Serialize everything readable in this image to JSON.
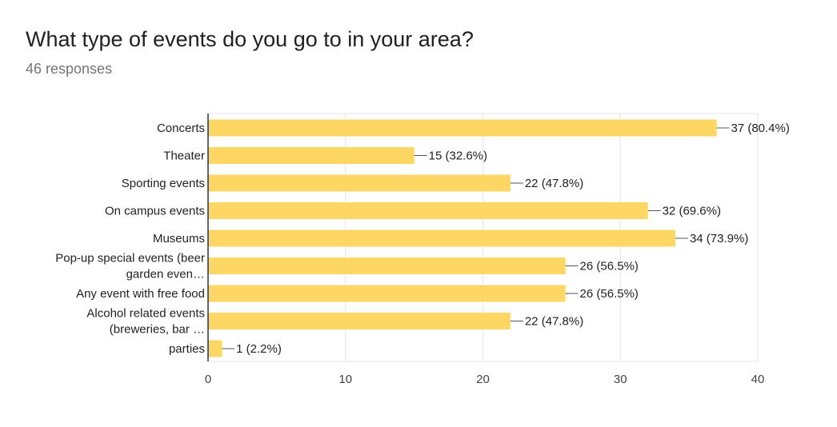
{
  "header": {
    "question": "What type of events do you go to in your area?",
    "responses": "46 responses"
  },
  "colors": {
    "bar": "#fdd663",
    "grid": "#e6e6e6",
    "axis": "#333333",
    "text": "#222222"
  },
  "chart_data": {
    "type": "bar",
    "orientation": "horizontal",
    "categories": [
      "Concerts",
      "Theater",
      "Sporting events",
      "On campus events",
      "Museums",
      "Pop-up special events (beer garden even…",
      "Any event with free food",
      "Alcohol related events (breweries, bar …",
      "parties"
    ],
    "category_lines": [
      [
        "Concerts"
      ],
      [
        "Theater"
      ],
      [
        "Sporting events"
      ],
      [
        "On campus events"
      ],
      [
        "Museums"
      ],
      [
        "Pop-up special events (beer",
        "garden even…"
      ],
      [
        "Any event with free food"
      ],
      [
        "Alcohol related events",
        "(breweries, bar …"
      ],
      [
        "parties"
      ]
    ],
    "values": [
      37,
      15,
      22,
      32,
      34,
      26,
      26,
      22,
      1
    ],
    "value_labels": [
      "37 (80.4%)",
      "15 (32.6%)",
      "22 (47.8%)",
      "32 (69.6%)",
      "34 (73.9%)",
      "26 (56.5%)",
      "26 (56.5%)",
      "22 (47.8%)",
      "1 (2.2%)"
    ],
    "xlim": [
      0,
      40
    ],
    "xticks": [
      0,
      10,
      20,
      30,
      40
    ],
    "grid": true,
    "legend": "none"
  }
}
